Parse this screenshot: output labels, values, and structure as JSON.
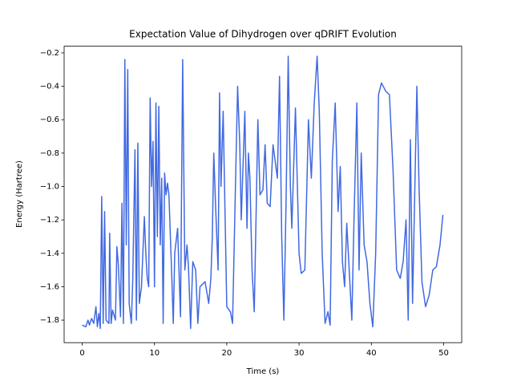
{
  "chart_data": {
    "type": "line",
    "title": "Expectation Value of Dihydrogen over qDRIFT Evolution",
    "x_label": "Time (s)",
    "y_label": "Energy (Hartree)",
    "color": "#4169e1",
    "xlim": [
      -2.5,
      52.5
    ],
    "ylim": [
      -1.935,
      -0.16
    ],
    "xticks": [
      0,
      10,
      20,
      30,
      40,
      50
    ],
    "yticks": [
      {
        "value": -1.8,
        "label": "−1.8"
      },
      {
        "value": -1.6,
        "label": "−1.6"
      },
      {
        "value": -1.4,
        "label": "−1.4"
      },
      {
        "value": -1.2,
        "label": "−1.2"
      },
      {
        "value": -1.0,
        "label": "−1.0"
      },
      {
        "value": -0.8,
        "label": "−0.8"
      },
      {
        "value": -0.6,
        "label": "−0.6"
      },
      {
        "value": -0.4,
        "label": "−0.4"
      },
      {
        "value": -0.2,
        "label": "−0.2"
      }
    ],
    "x": [
      0,
      0.5,
      0.8,
      1.0,
      1.3,
      1.6,
      1.9,
      2.1,
      2.3,
      2.5,
      2.7,
      2.9,
      3.1,
      3.3,
      3.7,
      3.8,
      4.0,
      4.2,
      4.6,
      4.8,
      5.0,
      5.3,
      5.5,
      5.7,
      5.9,
      6.1,
      6.3,
      6.5,
      6.8,
      7.0,
      7.3,
      7.5,
      7.7,
      7.9,
      8.2,
      8.6,
      8.8,
      9.0,
      9.2,
      9.4,
      9.6,
      9.8,
      10.0,
      10.2,
      10.4,
      10.6,
      10.8,
      11.0,
      11.2,
      11.4,
      11.6,
      11.8,
      12.0,
      12.4,
      12.6,
      12.8,
      13.2,
      13.6,
      13.9,
      14.2,
      14.5,
      14.7,
      15.0,
      15.3,
      15.7,
      16.0,
      16.3,
      17.0,
      17.5,
      17.8,
      18.0,
      18.2,
      18.5,
      18.8,
      19.0,
      19.2,
      19.5,
      20.0,
      20.5,
      20.8,
      21.2,
      21.5,
      21.8,
      22.0,
      22.5,
      22.8,
      23.0,
      23.2,
      23.5,
      23.8,
      24.0,
      24.3,
      24.6,
      25.0,
      25.3,
      25.6,
      26.0,
      26.4,
      27.0,
      27.3,
      27.6,
      27.9,
      28.2,
      28.5,
      28.8,
      29.0,
      29.5,
      30.0,
      30.3,
      30.8,
      31.3,
      31.7,
      32.1,
      32.5,
      32.8,
      33.2,
      33.6,
      34.0,
      34.3,
      34.6,
      35.0,
      35.4,
      35.7,
      36.0,
      36.3,
      36.6,
      37.0,
      37.3,
      37.6,
      38.0,
      38.3,
      38.6,
      39.0,
      39.4,
      39.8,
      40.2,
      40.6,
      41.0,
      41.4,
      42.0,
      42.5,
      43.0,
      43.5,
      44.0,
      44.4,
      44.8,
      45.1,
      45.4,
      45.7,
      46.0,
      46.3,
      46.6,
      47.0,
      47.5,
      48.0,
      48.5,
      49.0,
      49.5,
      49.9
    ],
    "values": [
      -1.83,
      -1.84,
      -1.8,
      -1.83,
      -1.79,
      -1.82,
      -1.72,
      -1.84,
      -1.76,
      -1.85,
      -1.06,
      -1.82,
      -1.15,
      -1.8,
      -1.82,
      -1.28,
      -1.82,
      -1.74,
      -1.8,
      -1.36,
      -1.47,
      -1.78,
      -1.1,
      -1.82,
      -0.24,
      -1.35,
      -0.3,
      -1.7,
      -1.82,
      -1.55,
      -0.78,
      -1.8,
      -0.74,
      -1.7,
      -1.6,
      -1.18,
      -1.4,
      -1.55,
      -1.6,
      -0.47,
      -1.0,
      -0.73,
      -1.6,
      -0.5,
      -1.3,
      -0.52,
      -1.35,
      -0.95,
      -1.82,
      -0.92,
      -1.05,
      -0.98,
      -1.05,
      -1.55,
      -1.82,
      -1.4,
      -1.25,
      -1.78,
      -0.24,
      -1.5,
      -1.35,
      -1.48,
      -1.85,
      -1.45,
      -1.5,
      -1.82,
      -1.6,
      -1.57,
      -1.7,
      -1.55,
      -1.3,
      -0.8,
      -1.17,
      -1.5,
      -0.44,
      -1.0,
      -0.55,
      -1.72,
      -1.75,
      -1.82,
      -1.0,
      -0.4,
      -0.75,
      -1.2,
      -0.55,
      -1.25,
      -0.8,
      -0.95,
      -1.5,
      -1.75,
      -1.3,
      -0.6,
      -1.05,
      -1.02,
      -0.75,
      -1.1,
      -1.12,
      -0.75,
      -0.95,
      -0.34,
      -1.3,
      -1.8,
      -1.1,
      -0.22,
      -1.0,
      -1.25,
      -0.53,
      -1.4,
      -1.52,
      -1.5,
      -0.6,
      -0.95,
      -0.5,
      -0.22,
      -0.55,
      -1.4,
      -1.82,
      -1.75,
      -1.83,
      -0.85,
      -0.5,
      -1.15,
      -0.88,
      -1.45,
      -1.6,
      -1.22,
      -1.55,
      -1.8,
      -1.2,
      -0.5,
      -1.5,
      -0.8,
      -1.35,
      -1.45,
      -1.7,
      -1.84,
      -1.4,
      -0.45,
      -0.38,
      -0.43,
      -0.45,
      -0.9,
      -1.5,
      -1.55,
      -1.45,
      -1.2,
      -1.8,
      -0.72,
      -1.7,
      -1.05,
      -0.4,
      -1.0,
      -1.57,
      -1.72,
      -1.65,
      -1.5,
      -1.48,
      -1.35,
      -1.17
    ]
  }
}
